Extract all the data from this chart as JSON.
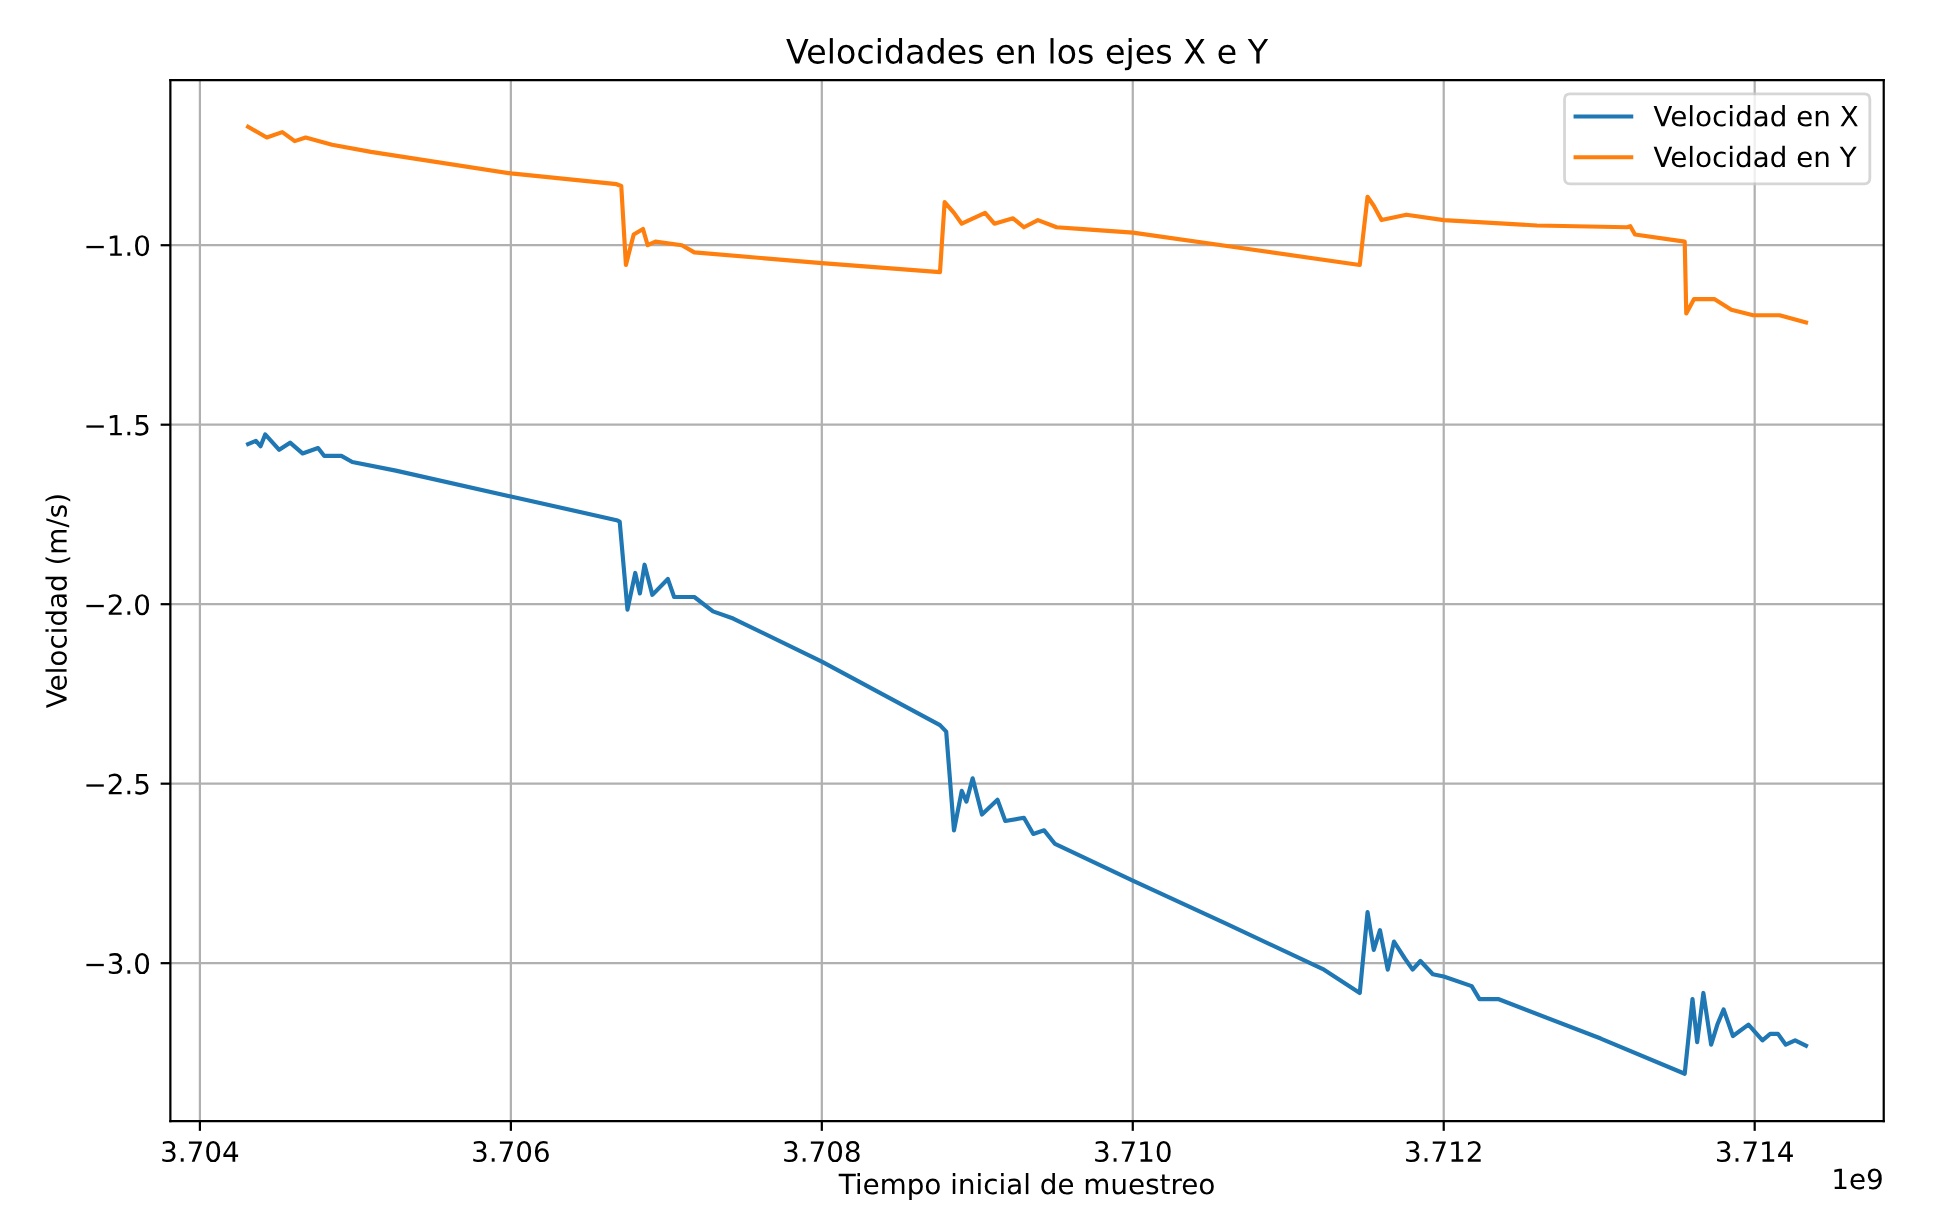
{
  "chart_data": {
    "type": "line",
    "title": "Velocidades en los ejes X e Y",
    "xlabel": "Tiempo inicial de muestreo",
    "ylabel": "Velocidad (m/s)",
    "annotations": [
      "1e9"
    ],
    "xlim": [
      3.70381,
      3.71483
    ],
    "ylim": [
      -3.44,
      -0.54
    ],
    "xticks": [
      {
        "value": 3.704,
        "label": "3.704"
      },
      {
        "value": 3.706,
        "label": "3.706"
      },
      {
        "value": 3.708,
        "label": "3.708"
      },
      {
        "value": 3.71,
        "label": "3.710"
      },
      {
        "value": 3.712,
        "label": "3.712"
      },
      {
        "value": 3.714,
        "label": "3.714"
      }
    ],
    "yticks": [
      {
        "value": -3.0,
        "label": "−3.0"
      },
      {
        "value": -2.5,
        "label": "−2.5"
      },
      {
        "value": -2.0,
        "label": "−2.0"
      },
      {
        "value": -1.5,
        "label": "−1.5"
      },
      {
        "value": -1.0,
        "label": "−1.0"
      }
    ],
    "grid": true,
    "legend": "top right",
    "line_style": "solid",
    "series": [
      {
        "name": "Velocidad en X",
        "color": "#1f77b4",
        "x": [
          3.70431,
          3.70436,
          3.70439,
          3.70442,
          3.70451,
          3.70458,
          3.70466,
          3.70476,
          3.7048,
          3.70491,
          3.70498,
          3.70526,
          3.706,
          3.70668,
          3.7067,
          3.70675,
          3.7068,
          3.70683,
          3.70686,
          3.70691,
          3.70701,
          3.70705,
          3.70718,
          3.7073,
          3.70743,
          3.708,
          3.70876,
          3.7088,
          3.70885,
          3.7089,
          3.70893,
          3.70897,
          3.70903,
          3.70913,
          3.70918,
          3.7093,
          3.70936,
          3.70943,
          3.7095,
          3.71,
          3.7106,
          3.71123,
          3.71146,
          3.71151,
          3.71155,
          3.71159,
          3.71164,
          3.71168,
          3.71175,
          3.7118,
          3.71185,
          3.71193,
          3.712,
          3.71218,
          3.71223,
          3.71235,
          3.71301,
          3.71355,
          3.7136,
          3.71363,
          3.71367,
          3.71372,
          3.71376,
          3.7138,
          3.71386,
          3.71396,
          3.71405,
          3.7141,
          3.71415,
          3.7142,
          3.71426,
          3.71433
        ],
        "values": [
          -1.554,
          -1.545,
          -1.56,
          -1.527,
          -1.57,
          -1.55,
          -1.58,
          -1.565,
          -1.587,
          -1.587,
          -1.604,
          -1.628,
          -1.7,
          -1.766,
          -1.77,
          -2.015,
          -1.913,
          -1.97,
          -1.89,
          -1.974,
          -1.93,
          -1.98,
          -1.98,
          -2.02,
          -2.04,
          -2.16,
          -2.337,
          -2.355,
          -2.63,
          -2.52,
          -2.55,
          -2.485,
          -2.586,
          -2.545,
          -2.604,
          -2.595,
          -2.64,
          -2.63,
          -2.668,
          -2.77,
          -2.89,
          -3.018,
          -3.083,
          -2.858,
          -2.963,
          -2.908,
          -3.018,
          -2.94,
          -2.987,
          -3.018,
          -2.994,
          -3.031,
          -3.037,
          -3.064,
          -3.1,
          -3.1,
          -3.21,
          -3.308,
          -3.1,
          -3.22,
          -3.083,
          -3.227,
          -3.171,
          -3.129,
          -3.203,
          -3.171,
          -3.215,
          -3.197,
          -3.197,
          -3.227,
          -3.215,
          -3.23
        ]
      },
      {
        "name": "Velocidad en Y",
        "color": "#ff7f0e",
        "x": [
          3.70431,
          3.70443,
          3.70453,
          3.70461,
          3.70468,
          3.70485,
          3.7051,
          3.706,
          3.70668,
          3.70671,
          3.70674,
          3.70679,
          3.70685,
          3.70688,
          3.70693,
          3.7071,
          3.70718,
          3.708,
          3.70876,
          3.70879,
          3.70885,
          3.7089,
          3.70905,
          3.70911,
          3.70923,
          3.7093,
          3.70939,
          3.70951,
          3.70968,
          3.71,
          3.71073,
          3.71146,
          3.71151,
          3.71155,
          3.7116,
          3.71176,
          3.712,
          3.7126,
          3.71318,
          3.7132,
          3.71323,
          3.71355,
          3.71356,
          3.71361,
          3.71374,
          3.71385,
          3.71399,
          3.71416,
          3.71433
        ],
        "values": [
          -0.67,
          -0.7,
          -0.685,
          -0.71,
          -0.7,
          -0.72,
          -0.74,
          -0.8,
          -0.83,
          -0.835,
          -1.055,
          -0.97,
          -0.955,
          -1.0,
          -0.99,
          -1.0,
          -1.02,
          -1.05,
          -1.075,
          -0.88,
          -0.91,
          -0.94,
          -0.91,
          -0.94,
          -0.925,
          -0.95,
          -0.93,
          -0.95,
          -0.955,
          -0.965,
          -1.01,
          -1.055,
          -0.865,
          -0.89,
          -0.93,
          -0.915,
          -0.93,
          -0.945,
          -0.95,
          -0.947,
          -0.97,
          -0.99,
          -1.19,
          -1.15,
          -1.15,
          -1.18,
          -1.195,
          -1.195,
          -1.215
        ]
      }
    ]
  }
}
